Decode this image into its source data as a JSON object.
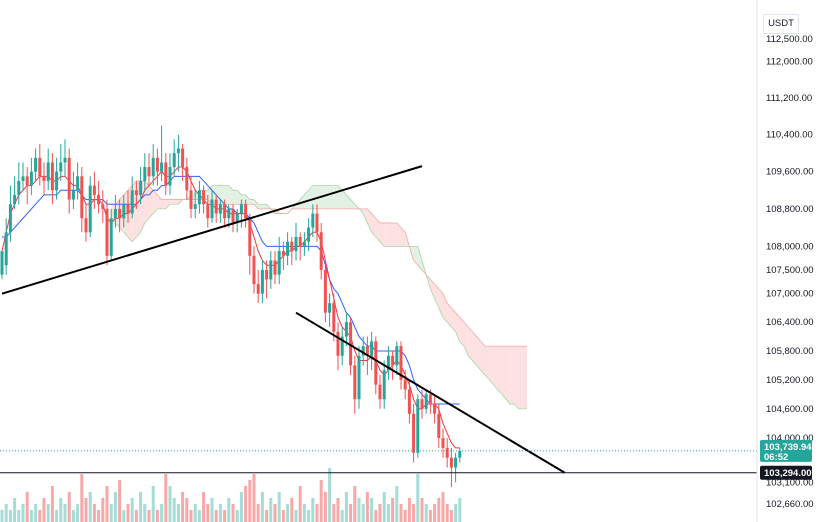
{
  "currency": "USDT",
  "colors": {
    "up": "#26a69a",
    "down": "#ef5350",
    "kijun": "#2962ff",
    "tenkan": "#f23645",
    "cloud_bull": "#e3f1e4",
    "cloud_bear": "#fde1e1",
    "trendline": "#000000",
    "price_line": "#131722"
  },
  "chart_data": {
    "type": "candlestick",
    "y_axis": {
      "scale": "log",
      "ticks": [
        "112,500.00",
        "112,000.00",
        "111,200.00",
        "110,400.00",
        "109,600.00",
        "108,800.00",
        "108,000.00",
        "107,500.00",
        "107,000.00",
        "106,400.00",
        "105,800.00",
        "105,200.00",
        "104,600.00",
        "104,000.00",
        "103,100.00",
        "102,660.00"
      ],
      "tick_values": [
        112500,
        112000,
        111200,
        110400,
        109600,
        108800,
        108000,
        107500,
        107000,
        106400,
        105800,
        105200,
        104600,
        104000,
        103100,
        102660
      ]
    },
    "current_price": {
      "value": 103739.94,
      "label": "103,739.94",
      "countdown": "06:52"
    },
    "horizontal_line": {
      "value": 103294.0,
      "label": "103,294.00"
    },
    "candles": [
      [
        107400,
        107900,
        107600,
        107300
      ],
      [
        107600,
        108300,
        108600,
        107400
      ],
      [
        108300,
        108900,
        109300,
        108100
      ],
      [
        108900,
        109100,
        109500,
        108800
      ],
      [
        109100,
        109400,
        109800,
        108900
      ],
      [
        109400,
        109500,
        109800,
        109200
      ],
      [
        109500,
        109300,
        109700,
        108900
      ],
      [
        109300,
        109600,
        109900,
        109100
      ],
      [
        109600,
        109900,
        110100,
        109400
      ],
      [
        109900,
        109500,
        110200,
        109300
      ],
      [
        109500,
        109400,
        109800,
        109100
      ],
      [
        109400,
        109800,
        110100,
        109200
      ],
      [
        109800,
        109200,
        110000,
        108900
      ],
      [
        109200,
        109600,
        109900,
        109000
      ],
      [
        109600,
        109800,
        110200,
        109400
      ],
      [
        109800,
        109900,
        110300,
        109500
      ],
      [
        109900,
        109000,
        110100,
        108700
      ],
      [
        109000,
        109200,
        109600,
        108800
      ],
      [
        109200,
        109500,
        109800,
        109000
      ],
      [
        109500,
        108600,
        109700,
        108300
      ],
      [
        108600,
        108300,
        108900,
        108100
      ],
      [
        108300,
        109300,
        109500,
        108200
      ],
      [
        109300,
        109100,
        109600,
        108800
      ],
      [
        109100,
        108900,
        109400,
        108700
      ],
      [
        108900,
        108800,
        109200,
        108500
      ],
      [
        108800,
        107800,
        109000,
        107600
      ],
      [
        107800,
        108600,
        108800,
        107700
      ],
      [
        108600,
        108800,
        109100,
        108400
      ],
      [
        108800,
        108600,
        109000,
        108300
      ],
      [
        108600,
        108900,
        109100,
        108400
      ],
      [
        108900,
        108700,
        109200,
        108500
      ],
      [
        108700,
        109200,
        109500,
        108600
      ],
      [
        109200,
        109100,
        109400,
        108800
      ],
      [
        109100,
        109400,
        109700,
        108900
      ],
      [
        109400,
        109700,
        110000,
        109200
      ],
      [
        109700,
        109500,
        110000,
        109300
      ],
      [
        109500,
        109900,
        110200,
        109300
      ],
      [
        109900,
        109600,
        110100,
        109300
      ],
      [
        109600,
        109800,
        110600,
        109400
      ],
      [
        109800,
        109300,
        110000,
        109100
      ],
      [
        109300,
        109700,
        110000,
        109100
      ],
      [
        109700,
        110000,
        110300,
        109500
      ],
      [
        110000,
        110100,
        110400,
        109600
      ],
      [
        110100,
        109700,
        110200,
        109400
      ],
      [
        109700,
        109200,
        109900,
        109000
      ],
      [
        109200,
        108800,
        109500,
        108600
      ],
      [
        108800,
        108900,
        109200,
        108600
      ],
      [
        108900,
        109200,
        109400,
        108700
      ],
      [
        109200,
        108900,
        109300,
        108700
      ],
      [
        108900,
        108600,
        109100,
        108400
      ],
      [
        108600,
        109000,
        109200,
        108500
      ],
      [
        109000,
        108700,
        109100,
        108500
      ],
      [
        108700,
        108900,
        109000,
        108500
      ],
      [
        108900,
        108600,
        109000,
        108400
      ],
      [
        108600,
        108800,
        108900,
        108400
      ],
      [
        108800,
        108500,
        108900,
        108300
      ],
      [
        108500,
        108700,
        108800,
        108300
      ],
      [
        108700,
        108900,
        109000,
        108400
      ],
      [
        108900,
        108600,
        109000,
        108400
      ],
      [
        108600,
        107800,
        108700,
        107400
      ],
      [
        107800,
        107200,
        108000,
        107000
      ],
      [
        107200,
        107000,
        107500,
        106800
      ],
      [
        107000,
        107500,
        107700,
        106800
      ],
      [
        107500,
        107300,
        107700,
        106900
      ],
      [
        107300,
        107700,
        107900,
        107100
      ],
      [
        107700,
        107400,
        107900,
        107200
      ],
      [
        107400,
        107900,
        108200,
        107200
      ],
      [
        107900,
        107800,
        108100,
        107500
      ],
      [
        107800,
        108100,
        108300,
        107600
      ],
      [
        108100,
        107900,
        108200,
        107600
      ],
      [
        107900,
        108200,
        108500,
        107700
      ],
      [
        108200,
        108000,
        108300,
        107700
      ],
      [
        108000,
        108100,
        108300,
        107800
      ],
      [
        108100,
        108400,
        108600,
        107900
      ],
      [
        108400,
        108700,
        108900,
        108200
      ],
      [
        108700,
        108300,
        108900,
        108100
      ],
      [
        108300,
        107500,
        108500,
        107300
      ],
      [
        107500,
        106600,
        107700,
        106400
      ],
      [
        106600,
        106800,
        107000,
        106300
      ],
      [
        106800,
        106200,
        107000,
        106000
      ],
      [
        106200,
        105700,
        106400,
        105400
      ],
      [
        105700,
        106100,
        106300,
        105500
      ],
      [
        106100,
        106400,
        106600,
        105900
      ],
      [
        106400,
        105500,
        106500,
        105300
      ],
      [
        105500,
        104800,
        105700,
        104500
      ],
      [
        104800,
        105700,
        105900,
        104600
      ],
      [
        105700,
        105900,
        106100,
        105500
      ],
      [
        105900,
        105700,
        106100,
        105300
      ],
      [
        105700,
        106000,
        106200,
        105400
      ],
      [
        106000,
        105100,
        106100,
        104900
      ],
      [
        105100,
        104800,
        105300,
        104600
      ],
      [
        104800,
        105400,
        105600,
        104600
      ],
      [
        105400,
        105700,
        105900,
        105200
      ],
      [
        105700,
        105500,
        105800,
        105200
      ],
      [
        105500,
        105900,
        106000,
        105300
      ],
      [
        105900,
        105200,
        106000,
        105000
      ],
      [
        105200,
        105000,
        105400,
        104800
      ],
      [
        105000,
        104500,
        105200,
        104300
      ],
      [
        104500,
        103700,
        104700,
        103500
      ],
      [
        103700,
        104800,
        104900,
        103600
      ],
      [
        104800,
        104600,
        105000,
        104400
      ],
      [
        104600,
        104900,
        105000,
        104500
      ],
      [
        104900,
        104700,
        105000,
        104500
      ],
      [
        104700,
        104500,
        104900,
        104300
      ],
      [
        104500,
        104000,
        104700,
        103800
      ],
      [
        104000,
        103800,
        104200,
        103600
      ],
      [
        103800,
        103600,
        104000,
        103400
      ],
      [
        103600,
        103400,
        103800,
        103000
      ],
      [
        103400,
        103600,
        103700,
        103100
      ],
      [
        103600,
        103740,
        103800,
        103500
      ]
    ],
    "volume": [
      2,
      3,
      2,
      4,
      2,
      3,
      5,
      2,
      3,
      2,
      4,
      3,
      6,
      2,
      4,
      3,
      5,
      2,
      3,
      8,
      4,
      5,
      3,
      2,
      4,
      6,
      3,
      5,
      7,
      2,
      3,
      4,
      2,
      5,
      3,
      2,
      6,
      2,
      3,
      8,
      6,
      4,
      3,
      5,
      4,
      2,
      3,
      2,
      5,
      3,
      4,
      2,
      3,
      2,
      4,
      3,
      2,
      5,
      6,
      7,
      8,
      3,
      5,
      2,
      4,
      3,
      5,
      2,
      3,
      4,
      2,
      6,
      3,
      2,
      4,
      3,
      7,
      5,
      9,
      3,
      4,
      2,
      5,
      3,
      6,
      4,
      3,
      5,
      4,
      2,
      3,
      5,
      3,
      4,
      6,
      3,
      2,
      4,
      3,
      8,
      4,
      3,
      2,
      3,
      4,
      5,
      3,
      2,
      3,
      4
    ],
    "tenkan_sen": [
      107900,
      108300,
      108700,
      108900,
      109100,
      109200,
      109300,
      109300,
      109400,
      109500,
      109500,
      109500,
      109400,
      109400,
      109500,
      109500,
      109400,
      109300,
      109300,
      109100,
      108900,
      108900,
      109000,
      109000,
      108900,
      108600,
      108500,
      108600,
      108600,
      108700,
      108700,
      108800,
      108900,
      109000,
      109200,
      109300,
      109400,
      109500,
      109600,
      109500,
      109500,
      109600,
      109700,
      109700,
      109600,
      109400,
      109200,
      109100,
      109000,
      108900,
      108900,
      108800,
      108800,
      108800,
      108700,
      108700,
      108700,
      108700,
      108700,
      108500,
      108200,
      107900,
      107700,
      107600,
      107600,
      107600,
      107700,
      107800,
      107900,
      107900,
      108000,
      108000,
      108100,
      108200,
      108300,
      108300,
      108100,
      107700,
      107300,
      106900,
      106500,
      106300,
      106200,
      106100,
      105800,
      105600,
      105600,
      105600,
      105700,
      105600,
      105400,
      105300,
      105400,
      105500,
      105600,
      105500,
      105300,
      105100,
      104800,
      104600,
      104600,
      104700,
      104700,
      104700,
      104600,
      104300,
      104100,
      103900,
      103800,
      103800
    ],
    "kijun_sen": [
      108200,
      108200,
      108300,
      108400,
      108500,
      108600,
      108700,
      108800,
      108900,
      109000,
      109100,
      109100,
      109100,
      109100,
      109200,
      109200,
      109200,
      109200,
      109200,
      109100,
      109000,
      109000,
      109000,
      109000,
      109000,
      108900,
      108900,
      108900,
      108900,
      108900,
      108900,
      108900,
      108900,
      109000,
      109100,
      109100,
      109200,
      109200,
      109300,
      109300,
      109400,
      109500,
      109500,
      109500,
      109500,
      109500,
      109500,
      109500,
      109400,
      109300,
      109200,
      109100,
      109000,
      108900,
      108800,
      108800,
      108700,
      108700,
      108700,
      108600,
      108500,
      108300,
      108100,
      108000,
      108000,
      108000,
      108000,
      108000,
      108000,
      108000,
      108000,
      108000,
      108000,
      108000,
      108000,
      108000,
      107900,
      107600,
      107300,
      107100,
      107000,
      106800,
      106600,
      106500,
      106300,
      106100,
      106000,
      105900,
      105900,
      105800,
      105800,
      105800,
      105800,
      105800,
      105800,
      105800,
      105700,
      105500,
      105200,
      105000,
      104900,
      104800,
      104700,
      104700,
      104700,
      104700,
      104700,
      104700,
      104700,
      104700
    ],
    "cloud_span_a": [
      108600,
      108500,
      108400,
      108300,
      108200,
      108100,
      108200,
      108300,
      108500,
      108600,
      108700,
      108800,
      108800,
      108800,
      108900,
      108900,
      108900,
      109000,
      109000,
      109100,
      109100,
      109200,
      109200,
      109200,
      109300,
      109300,
      109300,
      109300,
      109300,
      109200,
      109200,
      109100,
      109100,
      109000,
      109000,
      108900,
      108900,
      108900,
      108800,
      108800,
      108700,
      108700,
      108700,
      108800,
      108900,
      109000,
      109100,
      109200,
      109300,
      109300,
      109300,
      109300,
      109300,
      109300,
      109300,
      109200,
      109100,
      109000,
      108900,
      108800,
      108700,
      108500,
      108300,
      108200,
      108100,
      108000,
      108000,
      108000,
      108000,
      108000,
      108000,
      108000,
      108000,
      108000,
      107700,
      107400,
      107100,
      106900,
      106700,
      106500,
      106400,
      106300,
      106200,
      106000,
      105900,
      105700,
      105600,
      105500,
      105400,
      105300,
      105200,
      105100,
      105000,
      104900,
      104800,
      104700,
      104700,
      104600,
      104600,
      104600
    ],
    "cloud_span_b": [
      108900,
      108900,
      109000,
      109100,
      109200,
      109300,
      109400,
      109400,
      109400,
      109300,
      109200,
      109100,
      109000,
      109000,
      109000,
      109000,
      109000,
      109000,
      109000,
      109000,
      109000,
      109000,
      109000,
      109000,
      108900,
      108900,
      108900,
      108900,
      108900,
      108900,
      108900,
      108900,
      108900,
      108900,
      108900,
      108800,
      108800,
      108800,
      108800,
      108700,
      108700,
      108700,
      108700,
      108800,
      108800,
      108800,
      108800,
      108800,
      108800,
      108800,
      108800,
      108800,
      108800,
      108800,
      108800,
      108800,
      108800,
      108800,
      108800,
      108800,
      108800,
      108800,
      108700,
      108600,
      108500,
      108500,
      108500,
      108500,
      108500,
      108400,
      108300,
      108000,
      107700,
      107600,
      107500,
      107400,
      107300,
      107200,
      107100,
      107000,
      106800,
      106700,
      106600,
      106500,
      106400,
      106300,
      106200,
      106100,
      106000,
      105900,
      105900,
      105900,
      105900,
      105900,
      105900,
      105900,
      105900,
      105900,
      105900,
      105900
    ],
    "trendlines": [
      {
        "from": [
          0,
          107000
        ],
        "to": [
          100,
          109720
        ]
      },
      {
        "from": [
          70,
          106600
        ],
        "to": [
          134,
          103294
        ]
      }
    ],
    "grid": false,
    "legend": "none"
  }
}
